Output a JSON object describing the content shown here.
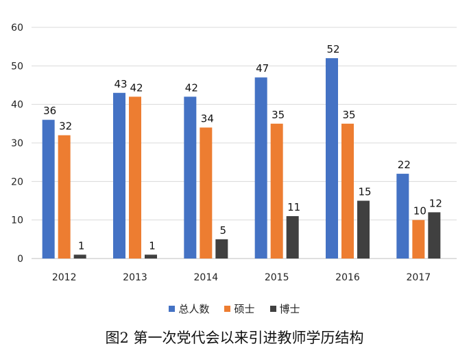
{
  "chart_data": {
    "type": "bar",
    "categories": [
      "2012",
      "2013",
      "2014",
      "2015",
      "2016",
      "2017"
    ],
    "series": [
      {
        "name": "总人数",
        "values": [
          36,
          43,
          42,
          47,
          52,
          22
        ],
        "color": "#4472c4"
      },
      {
        "name": "硕士",
        "values": [
          32,
          42,
          34,
          35,
          35,
          10
        ],
        "color": "#ed7d31"
      },
      {
        "name": "博士",
        "values": [
          1,
          1,
          5,
          11,
          15,
          12
        ],
        "color": "#404040"
      }
    ],
    "ylim": [
      0,
      60
    ],
    "yticks": [
      "0",
      "10",
      "20",
      "30",
      "40",
      "50",
      "60"
    ],
    "grid": true,
    "legend_position": "bottom",
    "title": "",
    "xlabel": "",
    "ylabel": ""
  },
  "caption": "图2 第一次党代会以来引进教师学历结构"
}
